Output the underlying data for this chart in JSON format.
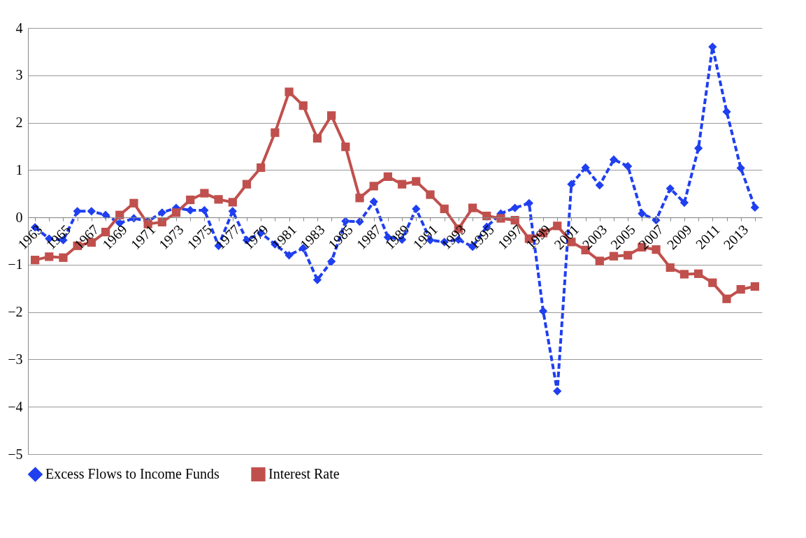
{
  "chart_data": {
    "type": "line",
    "categories": [
      "1963",
      null,
      "1965",
      null,
      "1967",
      null,
      "1969",
      null,
      "1971",
      null,
      "1973",
      null,
      "1975",
      null,
      "1977",
      null,
      "1979",
      null,
      "1981",
      null,
      "1983",
      null,
      "1985",
      null,
      "1987",
      null,
      "1989",
      null,
      "1991",
      null,
      "1993",
      null,
      "1995",
      null,
      "1997",
      null,
      "1999",
      null,
      "2001",
      null,
      "2003",
      null,
      "2005",
      null,
      "2007",
      null,
      "2009",
      null,
      "2011",
      null,
      "2013",
      null
    ],
    "series": [
      {
        "name": "Excess Flows to Income Funds",
        "color": "#1f3ff0",
        "marker": "diamond",
        "line_style": "dashed",
        "values": [
          -0.21,
          -0.45,
          -0.48,
          0.13,
          0.13,
          0.05,
          -0.12,
          -0.02,
          -0.08,
          0.1,
          0.2,
          0.15,
          0.15,
          -0.6,
          0.13,
          -0.48,
          -0.33,
          -0.57,
          -0.8,
          -0.65,
          -1.32,
          -0.93,
          -0.08,
          -0.09,
          0.33,
          -0.42,
          -0.47,
          0.18,
          -0.48,
          -0.52,
          -0.47,
          -0.62,
          -0.2,
          0.08,
          0.2,
          0.3,
          -1.98,
          -3.67,
          0.7,
          1.05,
          0.68,
          1.22,
          1.08,
          0.08,
          -0.06,
          0.61,
          0.31,
          1.46,
          3.6,
          2.23,
          1.04,
          0.21
        ]
      },
      {
        "name": "Interest Rate",
        "color": "#c0504d",
        "marker": "square",
        "line_style": "solid",
        "values": [
          -0.9,
          -0.83,
          -0.85,
          -0.6,
          -0.53,
          -0.31,
          0.05,
          0.3,
          -0.14,
          -0.1,
          0.1,
          0.37,
          0.51,
          0.38,
          0.32,
          0.7,
          1.05,
          1.79,
          2.65,
          2.36,
          1.67,
          2.15,
          1.49,
          0.41,
          0.66,
          0.86,
          0.7,
          0.76,
          0.48,
          0.18,
          -0.24,
          0.2,
          0.03,
          -0.02,
          -0.06,
          -0.45,
          -0.33,
          -0.18,
          -0.52,
          -0.69,
          -0.92,
          -0.82,
          -0.8,
          -0.63,
          -0.68,
          -1.06,
          -1.2,
          -1.19,
          -1.38,
          -1.72,
          -1.52,
          -1.46
        ]
      }
    ],
    "ylim": [
      -5,
      4
    ],
    "yticks": [
      -5,
      -4,
      -3,
      -2,
      -1,
      0,
      1,
      2,
      3,
      4
    ],
    "grid": "y",
    "legend": "bottom"
  }
}
